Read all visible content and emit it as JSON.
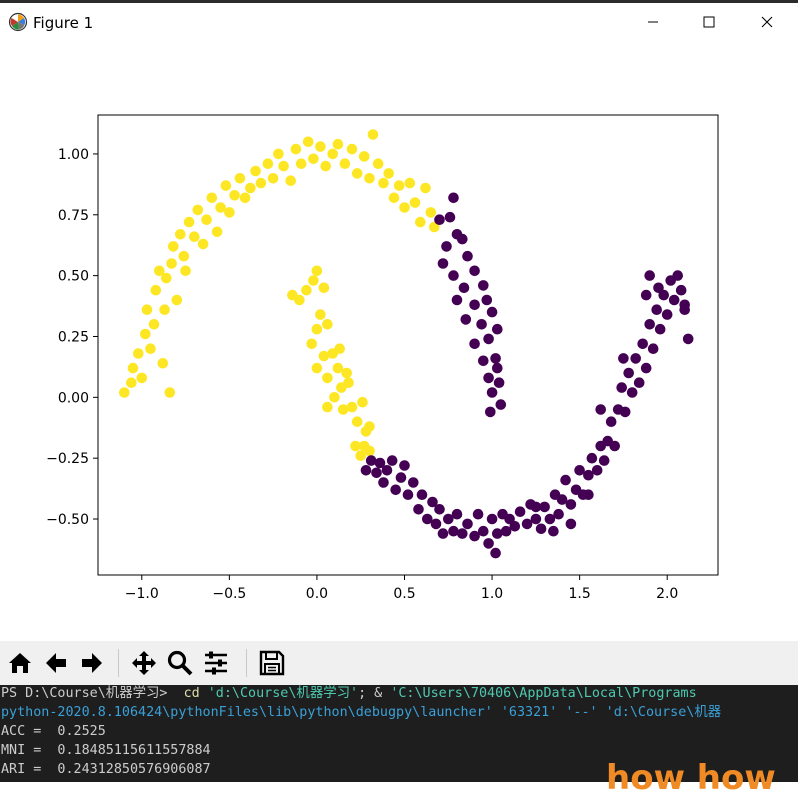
{
  "window": {
    "title": "Figure 1",
    "controls": [
      "minimize-icon",
      "maximize-icon",
      "close-icon"
    ]
  },
  "chart_data": {
    "type": "scatter",
    "title": "",
    "xlabel": "",
    "ylabel": "",
    "xlim": [
      -1.25,
      2.29
    ],
    "ylim": [
      -0.73,
      1.16
    ],
    "xticks": [
      "−1.0",
      "−0.5",
      "0.0",
      "0.5",
      "1.0",
      "1.5",
      "2.0"
    ],
    "xtick_values": [
      -1.0,
      -0.5,
      0.0,
      0.5,
      1.0,
      1.5,
      2.0
    ],
    "yticks": [
      "1.00",
      "0.75",
      "0.50",
      "0.25",
      "0.00",
      "−0.25",
      "−0.50"
    ],
    "ytick_values": [
      1.0,
      0.75,
      0.5,
      0.25,
      0.0,
      -0.25,
      -0.5
    ],
    "colors": {
      "cluster_0": "#fde725",
      "cluster_1": "#440154"
    },
    "series": [
      {
        "color": "#fde725",
        "points": [
          [
            -1.1,
            0.02
          ],
          [
            -1.06,
            0.06
          ],
          [
            -1.05,
            0.12
          ],
          [
            -1.02,
            0.18
          ],
          [
            -1.0,
            0.08
          ],
          [
            -0.98,
            0.26
          ],
          [
            -0.97,
            0.36
          ],
          [
            -0.95,
            0.2
          ],
          [
            -0.93,
            0.3
          ],
          [
            -0.92,
            0.44
          ],
          [
            -0.9,
            0.52
          ],
          [
            -0.88,
            0.14
          ],
          [
            -0.87,
            0.36
          ],
          [
            -0.86,
            0.49
          ],
          [
            -0.84,
            0.02
          ],
          [
            -0.83,
            0.55
          ],
          [
            -0.82,
            0.62
          ],
          [
            -0.8,
            0.4
          ],
          [
            -0.78,
            0.67
          ],
          [
            -0.76,
            0.58
          ],
          [
            -0.75,
            0.52
          ],
          [
            -0.73,
            0.72
          ],
          [
            -0.7,
            0.66
          ],
          [
            -0.68,
            0.77
          ],
          [
            -0.65,
            0.63
          ],
          [
            -0.63,
            0.73
          ],
          [
            -0.6,
            0.82
          ],
          [
            -0.57,
            0.68
          ],
          [
            -0.55,
            0.78
          ],
          [
            -0.52,
            0.87
          ],
          [
            -0.5,
            0.76
          ],
          [
            -0.47,
            0.83
          ],
          [
            -0.44,
            0.9
          ],
          [
            -0.41,
            0.82
          ],
          [
            -0.38,
            0.86
          ],
          [
            -0.35,
            0.93
          ],
          [
            -0.32,
            0.88
          ],
          [
            -0.28,
            0.96
          ],
          [
            -0.25,
            0.9
          ],
          [
            -0.22,
            1.0
          ],
          [
            -0.19,
            0.95
          ],
          [
            -0.15,
            0.89
          ],
          [
            -0.12,
            1.02
          ],
          [
            -0.09,
            0.96
          ],
          [
            -0.05,
            1.05
          ],
          [
            -0.02,
            0.98
          ],
          [
            0.02,
            1.03
          ],
          [
            0.05,
            0.95
          ],
          [
            0.09,
            1.0
          ],
          [
            0.12,
            1.04
          ],
          [
            0.16,
            0.96
          ],
          [
            0.2,
            1.02
          ],
          [
            0.23,
            0.92
          ],
          [
            0.27,
            0.99
          ],
          [
            0.3,
            0.9
          ],
          [
            0.32,
            1.08
          ],
          [
            0.35,
            0.96
          ],
          [
            0.38,
            0.88
          ],
          [
            0.41,
            0.92
          ],
          [
            0.44,
            0.82
          ],
          [
            0.47,
            0.87
          ],
          [
            0.5,
            0.78
          ],
          [
            0.53,
            0.88
          ],
          [
            0.56,
            0.8
          ],
          [
            0.59,
            0.72
          ],
          [
            0.62,
            0.86
          ],
          [
            0.65,
            0.76
          ],
          [
            0.67,
            0.7
          ],
          [
            -0.14,
            0.42
          ],
          [
            -0.1,
            0.4
          ],
          [
            -0.06,
            0.44
          ],
          [
            -0.02,
            0.48
          ],
          [
            0.0,
            0.52
          ],
          [
            0.02,
            0.34
          ],
          [
            0.04,
            0.45
          ],
          [
            0.06,
            0.3
          ],
          [
            0.0,
            0.28
          ],
          [
            -0.03,
            0.22
          ],
          [
            0.04,
            0.17
          ],
          [
            0.0,
            0.12
          ],
          [
            0.06,
            0.08
          ],
          [
            0.09,
            0.18
          ],
          [
            0.12,
            0.12
          ],
          [
            0.14,
            0.04
          ],
          [
            0.1,
            0.0
          ],
          [
            0.15,
            -0.05
          ],
          [
            0.18,
            0.06
          ],
          [
            0.2,
            -0.04
          ],
          [
            0.23,
            -0.1
          ],
          [
            0.26,
            -0.02
          ],
          [
            0.28,
            -0.14
          ],
          [
            0.22,
            -0.2
          ],
          [
            0.27,
            -0.2
          ],
          [
            0.3,
            -0.12
          ],
          [
            0.3,
            -0.22
          ],
          [
            0.25,
            -0.24
          ],
          [
            0.06,
            -0.04
          ],
          [
            0.13,
            0.2
          ],
          [
            0.17,
            0.1
          ]
        ]
      },
      {
        "color": "#440154",
        "points": [
          [
            0.78,
            0.82
          ],
          [
            0.76,
            0.74
          ],
          [
            0.8,
            0.67
          ],
          [
            0.7,
            0.73
          ],
          [
            0.74,
            0.62
          ],
          [
            0.83,
            0.65
          ],
          [
            0.72,
            0.55
          ],
          [
            0.86,
            0.58
          ],
          [
            0.78,
            0.5
          ],
          [
            0.9,
            0.52
          ],
          [
            0.84,
            0.45
          ],
          [
            0.95,
            0.46
          ],
          [
            0.8,
            0.4
          ],
          [
            0.9,
            0.38
          ],
          [
            0.97,
            0.4
          ],
          [
            0.85,
            0.32
          ],
          [
            0.94,
            0.3
          ],
          [
            1.0,
            0.35
          ],
          [
            0.9,
            0.22
          ],
          [
            0.98,
            0.24
          ],
          [
            1.03,
            0.28
          ],
          [
            0.95,
            0.15
          ],
          [
            1.02,
            0.16
          ],
          [
            0.98,
            0.08
          ],
          [
            1.04,
            0.06
          ],
          [
            1.0,
            0.02
          ],
          [
            1.05,
            -0.03
          ],
          [
            0.99,
            -0.06
          ],
          [
            1.03,
            0.12
          ],
          [
            0.28,
            -0.3
          ],
          [
            0.31,
            -0.26
          ],
          [
            0.34,
            -0.31
          ],
          [
            0.36,
            -0.27
          ],
          [
            0.38,
            -0.35
          ],
          [
            0.4,
            -0.3
          ],
          [
            0.43,
            -0.26
          ],
          [
            0.45,
            -0.38
          ],
          [
            0.48,
            -0.33
          ],
          [
            0.5,
            -0.28
          ],
          [
            0.52,
            -0.4
          ],
          [
            0.55,
            -0.35
          ],
          [
            0.58,
            -0.46
          ],
          [
            0.6,
            -0.4
          ],
          [
            0.63,
            -0.5
          ],
          [
            0.66,
            -0.43
          ],
          [
            0.68,
            -0.52
          ],
          [
            0.7,
            -0.46
          ],
          [
            0.72,
            -0.56
          ],
          [
            0.75,
            -0.5
          ],
          [
            0.78,
            -0.55
          ],
          [
            0.8,
            -0.48
          ],
          [
            0.83,
            -0.56
          ],
          [
            0.86,
            -0.52
          ],
          [
            0.9,
            -0.57
          ],
          [
            0.92,
            -0.48
          ],
          [
            0.95,
            -0.55
          ],
          [
            0.98,
            -0.6
          ],
          [
            1.0,
            -0.5
          ],
          [
            1.03,
            -0.56
          ],
          [
            1.02,
            -0.64
          ],
          [
            1.06,
            -0.48
          ],
          [
            1.08,
            -0.55
          ],
          [
            1.1,
            -0.5
          ],
          [
            1.13,
            -0.53
          ],
          [
            1.16,
            -0.47
          ],
          [
            1.2,
            -0.52
          ],
          [
            1.22,
            -0.44
          ],
          [
            1.25,
            -0.5
          ],
          [
            1.28,
            -0.54
          ],
          [
            1.3,
            -0.45
          ],
          [
            1.33,
            -0.5
          ],
          [
            1.36,
            -0.4
          ],
          [
            1.38,
            -0.48
          ],
          [
            1.4,
            -0.42
          ],
          [
            1.42,
            -0.34
          ],
          [
            1.45,
            -0.44
          ],
          [
            1.48,
            -0.38
          ],
          [
            1.5,
            -0.3
          ],
          [
            1.52,
            -0.4
          ],
          [
            1.55,
            -0.32
          ],
          [
            1.57,
            -0.25
          ],
          [
            1.6,
            -0.3
          ],
          [
            1.62,
            -0.2
          ],
          [
            1.64,
            -0.26
          ],
          [
            1.66,
            -0.18
          ],
          [
            1.68,
            -0.1
          ],
          [
            1.7,
            -0.2
          ],
          [
            1.72,
            -0.05
          ],
          [
            1.74,
            0.04
          ],
          [
            1.76,
            -0.06
          ],
          [
            1.78,
            0.1
          ],
          [
            1.8,
            0.02
          ],
          [
            1.82,
            0.16
          ],
          [
            1.84,
            0.06
          ],
          [
            1.86,
            0.22
          ],
          [
            1.88,
            0.12
          ],
          [
            1.9,
            0.3
          ],
          [
            1.92,
            0.2
          ],
          [
            1.94,
            0.36
          ],
          [
            1.96,
            0.28
          ],
          [
            1.98,
            0.42
          ],
          [
            2.0,
            0.34
          ],
          [
            2.02,
            0.48
          ],
          [
            2.04,
            0.4
          ],
          [
            2.06,
            0.5
          ],
          [
            2.08,
            0.44
          ],
          [
            2.1,
            0.36
          ],
          [
            2.12,
            0.24
          ],
          [
            2.1,
            0.38
          ],
          [
            1.9,
            0.5
          ],
          [
            1.95,
            0.45
          ],
          [
            1.88,
            0.42
          ],
          [
            1.75,
            0.16
          ],
          [
            1.62,
            -0.05
          ],
          [
            1.55,
            -0.4
          ],
          [
            1.45,
            -0.52
          ],
          [
            1.35,
            -0.55
          ],
          [
            1.25,
            -0.45
          ]
        ]
      }
    ]
  },
  "toolbar": {
    "buttons": [
      "home-icon",
      "back-icon",
      "forward-icon",
      "pan-icon",
      "zoom-icon",
      "configure-subplots-icon",
      "save-icon"
    ]
  },
  "terminal": {
    "line1_prompt": "PS D:\\Course\\机器学习>  ",
    "line1_cmd": "cd",
    "line1_arg1": " 'd:\\Course\\机器学习'",
    "line1_sep": "; & ",
    "line1_arg2": "'C:\\Users\\70406\\AppData\\Local\\Programs",
    "line2": "python-2020.8.106424\\pythonFiles\\lib\\python\\debugpy\\launcher' '63321' '--' 'd:\\Course\\机器",
    "line3": "ACC =  0.2525",
    "line4": "MNI =  0.18485115611557884",
    "line5": "ARI =  0.24312850576906087"
  },
  "overlay_text": "how how"
}
